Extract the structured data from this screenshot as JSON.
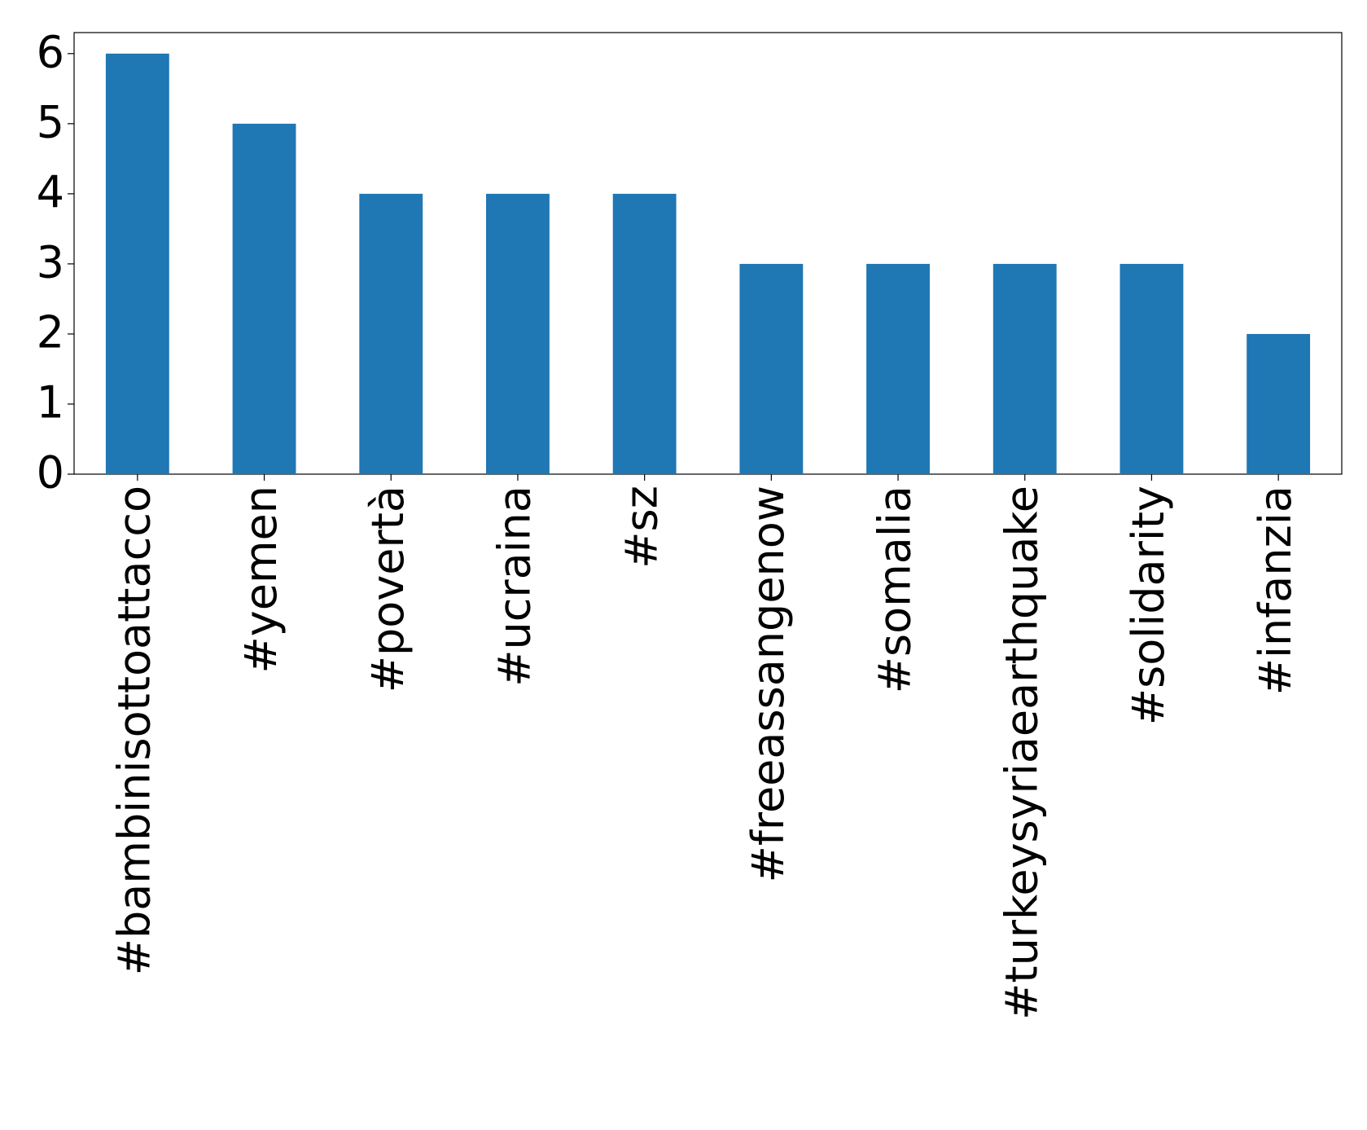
{
  "chart_data": {
    "type": "bar",
    "categories": [
      "#bambinisottoattacco",
      "#yemen",
      "#povertà",
      "#ucraina",
      "#sz",
      "#freeassangenow",
      "#somalia",
      "#turkeysyriaearthquake",
      "#solidarity",
      "#infanzia"
    ],
    "values": [
      6,
      5,
      4,
      4,
      4,
      3,
      3,
      3,
      3,
      2
    ],
    "color": "#1f77b4",
    "ylim": [
      0,
      6.3
    ],
    "yticks": [
      0,
      1,
      2,
      3,
      4,
      5,
      6
    ],
    "grid": false
  }
}
